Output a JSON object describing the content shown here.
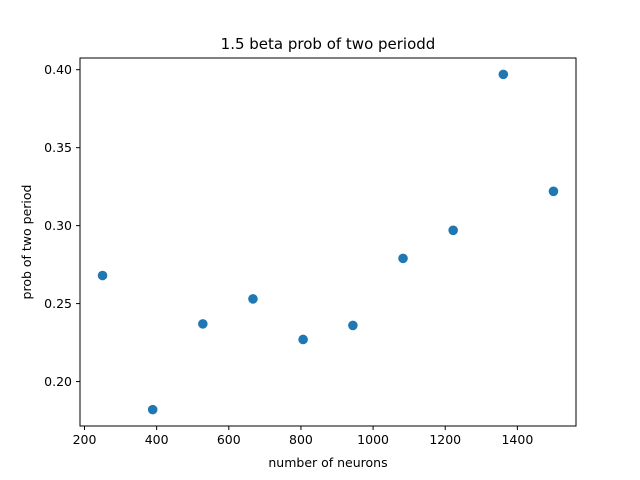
{
  "chart_data": {
    "type": "scatter",
    "title": "1.5 beta prob of two periodd",
    "xlabel": "number of neurons",
    "ylabel": "prob of two period",
    "x": [
      250,
      389,
      528,
      667,
      806,
      944,
      1083,
      1222,
      1361,
      1500
    ],
    "y": [
      0.268,
      0.182,
      0.237,
      0.253,
      0.227,
      0.236,
      0.279,
      0.297,
      0.397,
      0.322
    ],
    "xlim": [
      187.5,
      1562.5
    ],
    "ylim": [
      0.1715,
      0.4075
    ],
    "xticks": [
      200,
      400,
      600,
      800,
      1000,
      1200,
      1400
    ],
    "xtick_labels": [
      "200",
      "400",
      "600",
      "800",
      "1000",
      "1200",
      "1400"
    ],
    "yticks": [
      0.2,
      0.25,
      0.3,
      0.35,
      0.4
    ],
    "ytick_labels": [
      "0.20",
      "0.25",
      "0.30",
      "0.35",
      "0.40"
    ],
    "grid": false,
    "marker_color": "#1f77b4"
  }
}
